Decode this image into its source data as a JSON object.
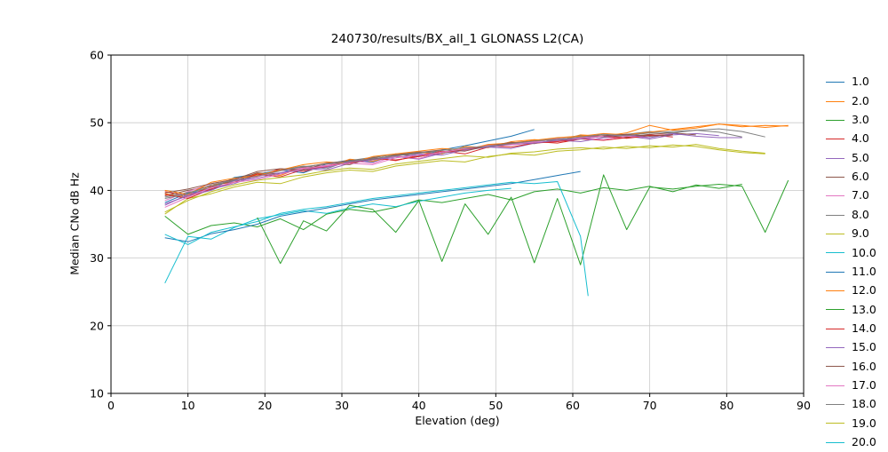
{
  "chart_data": {
    "type": "line",
    "title": "240730/results/BX_all_1 GLONASS L2(CA)",
    "xlabel": "Elevation (deg)",
    "ylabel": "Median CNo dB Hz",
    "xlim": [
      0,
      90
    ],
    "ylim": [
      10,
      60
    ],
    "xticks": [
      0,
      10,
      20,
      30,
      40,
      50,
      60,
      70,
      80,
      90
    ],
    "yticks": [
      10,
      20,
      30,
      40,
      50,
      60
    ],
    "grid": true,
    "grid_color": "#c9c9c9",
    "frame_color": "#000000",
    "legend_position": "right-outside",
    "series": [
      {
        "label": "1.0",
        "color": "#1f77b4",
        "x": [
          7,
          10,
          13,
          16,
          19,
          22,
          25,
          28,
          31,
          34,
          37,
          40,
          43,
          46,
          49,
          52,
          55
        ],
        "y": [
          38.2,
          39.6,
          40.1,
          41.9,
          42.4,
          43.0,
          42.6,
          43.9,
          44.5,
          44.2,
          45.3,
          45.1,
          46.0,
          46.6,
          47.3,
          48.0,
          49.0
        ]
      },
      {
        "label": "2.0",
        "color": "#ff7f0e",
        "x": [
          7,
          10,
          13,
          16,
          19,
          22,
          25,
          28,
          31,
          34,
          37,
          40,
          43,
          46,
          49,
          52,
          55,
          58,
          61,
          64,
          67,
          70,
          73,
          76,
          79,
          82,
          85,
          88
        ],
        "y": [
          39.5,
          39.0,
          40.8,
          41.2,
          42.5,
          42.2,
          43.5,
          43.4,
          44.6,
          44.3,
          45.2,
          45.6,
          45.4,
          46.5,
          46.3,
          47.2,
          47.5,
          47.3,
          48.2,
          48.0,
          48.5,
          49.6,
          48.9,
          49.2,
          49.8,
          49.4,
          49.6,
          49.5
        ]
      },
      {
        "label": "3.0",
        "color": "#2ca02c",
        "x": [
          7,
          10,
          13,
          16,
          19,
          22,
          25,
          28,
          31,
          34,
          37,
          40,
          43,
          46,
          49,
          52,
          55,
          58,
          61,
          64,
          67,
          70,
          73,
          76,
          79,
          82
        ],
        "y": [
          36.2,
          33.5,
          34.8,
          35.2,
          34.6,
          35.8,
          34.2,
          36.5,
          37.2,
          36.8,
          37.5,
          38.6,
          38.2,
          38.8,
          39.4,
          38.6,
          39.8,
          40.2,
          39.6,
          40.4,
          40.0,
          40.6,
          39.8,
          40.8,
          40.3,
          40.9
        ]
      },
      {
        "label": "4.0",
        "color": "#d62728",
        "x": [
          7,
          10,
          13,
          16,
          19,
          22,
          25,
          28,
          31,
          34,
          37,
          40,
          43,
          46,
          49,
          52,
          55,
          58,
          61,
          64,
          67,
          70,
          73
        ],
        "y": [
          39.8,
          39.2,
          40.5,
          41.6,
          42.0,
          43.2,
          42.8,
          43.6,
          44.2,
          44.8,
          44.4,
          45.2,
          45.8,
          45.4,
          46.4,
          46.8,
          47.2,
          47.0,
          47.6,
          47.4,
          47.8,
          48.2,
          47.9
        ]
      },
      {
        "label": "5.0",
        "color": "#9467bd",
        "x": [
          7,
          10,
          13,
          16,
          19,
          22,
          25,
          28,
          31,
          34,
          37,
          40,
          43,
          46,
          49,
          52,
          55,
          58,
          61,
          64,
          67,
          70,
          73,
          76,
          79
        ],
        "y": [
          37.8,
          39.4,
          40.2,
          41.0,
          42.2,
          42.6,
          43.2,
          43.0,
          44.0,
          44.5,
          45.0,
          44.6,
          45.5,
          46.0,
          46.4,
          46.2,
          47.0,
          47.4,
          47.2,
          47.8,
          48.0,
          47.6,
          48.2,
          48.4,
          48.1
        ]
      },
      {
        "label": "6.0",
        "color": "#8c564b",
        "x": [
          7,
          10,
          13,
          16,
          19,
          22,
          25,
          28,
          31,
          34,
          37,
          40,
          43,
          46,
          49,
          52,
          55,
          58,
          61,
          64,
          67,
          70,
          73,
          76
        ],
        "y": [
          39.2,
          40.0,
          40.6,
          41.4,
          42.6,
          42.4,
          43.4,
          44.0,
          43.8,
          44.8,
          45.4,
          45.0,
          45.6,
          46.2,
          46.6,
          47.1,
          46.9,
          47.5,
          47.7,
          48.1,
          47.9,
          48.3,
          48.5,
          48.2
        ]
      },
      {
        "label": "7.0",
        "color": "#e377c2",
        "x": [
          7,
          10,
          13,
          16,
          19,
          22,
          25,
          28,
          31,
          34,
          37,
          40,
          43,
          46,
          49,
          52,
          55,
          58,
          61,
          64,
          67,
          70
        ],
        "y": [
          38.5,
          39.8,
          41.0,
          41.6,
          42.0,
          42.9,
          43.3,
          43.7,
          44.4,
          44.0,
          45.1,
          44.7,
          45.7,
          45.9,
          46.5,
          46.7,
          47.1,
          47.3,
          47.7,
          47.5,
          48.0,
          47.8
        ]
      },
      {
        "label": "8.0",
        "color": "#7f7f7f",
        "x": [
          7,
          10,
          13,
          16,
          19,
          22,
          25,
          28,
          31,
          34,
          37,
          40,
          43,
          46,
          49,
          52,
          55,
          58,
          61,
          64,
          67,
          70,
          73,
          76,
          79,
          82,
          85
        ],
        "y": [
          39.0,
          39.7,
          40.4,
          41.8,
          42.2,
          43.0,
          43.6,
          43.2,
          44.4,
          44.9,
          45.3,
          45.7,
          45.5,
          46.1,
          46.7,
          46.9,
          47.3,
          47.7,
          48.1,
          47.9,
          48.3,
          48.7,
          48.5,
          48.9,
          49.1,
          48.7,
          47.9
        ]
      },
      {
        "label": "9.0",
        "color": "#bcbd22",
        "x": [
          7,
          10,
          13,
          16,
          19,
          22,
          25,
          28,
          31,
          34,
          37,
          40,
          43,
          46,
          49,
          52,
          55,
          58,
          61,
          64,
          67,
          70,
          73,
          76,
          79,
          82,
          85
        ],
        "y": [
          36.5,
          38.8,
          39.5,
          40.5,
          41.2,
          41.0,
          42.0,
          42.6,
          43.0,
          42.8,
          43.6,
          44.0,
          44.4,
          44.2,
          45.0,
          45.4,
          45.2,
          45.8,
          46.0,
          46.4,
          46.2,
          46.6,
          46.4,
          46.8,
          46.2,
          45.8,
          45.5
        ]
      },
      {
        "label": "10.0",
        "color": "#17becf",
        "x": [
          7,
          10,
          13,
          16,
          19,
          22,
          25,
          28,
          31,
          34,
          37,
          40,
          43,
          46,
          49,
          52
        ],
        "y": [
          26.3,
          33.2,
          32.8,
          34.5,
          35.8,
          36.4,
          37.0,
          36.6,
          37.4,
          38.0,
          37.6,
          38.4,
          39.0,
          39.6,
          40.0,
          40.3
        ]
      },
      {
        "label": "11.0",
        "color": "#1f77b4",
        "x": [
          7,
          10,
          13,
          16,
          19,
          22,
          25,
          28,
          31,
          34,
          37,
          40,
          43,
          46,
          49,
          52,
          55,
          58,
          61
        ],
        "y": [
          33.0,
          32.4,
          33.6,
          34.2,
          35.0,
          36.2,
          36.8,
          37.4,
          38.0,
          38.6,
          39.0,
          39.4,
          39.8,
          40.2,
          40.6,
          41.0,
          41.6,
          42.2,
          42.8
        ]
      },
      {
        "label": "12.0",
        "color": "#ff7f0e",
        "x": [
          7,
          10,
          13,
          16,
          19,
          22,
          25,
          28,
          31,
          34,
          37,
          40,
          43,
          46,
          49,
          52,
          55,
          58,
          61,
          64,
          67,
          70,
          73,
          76,
          79,
          82,
          85,
          88
        ],
        "y": [
          40.0,
          39.4,
          41.2,
          41.8,
          42.2,
          43.0,
          43.8,
          44.2,
          44.0,
          45.0,
          45.4,
          45.8,
          46.2,
          46.0,
          46.8,
          47.0,
          47.4,
          47.8,
          48.0,
          48.4,
          48.2,
          48.6,
          49.0,
          49.4,
          49.8,
          49.6,
          49.3,
          49.6
        ]
      },
      {
        "label": "13.0",
        "color": "#2ca02c",
        "x": [
          19,
          22,
          25,
          28,
          31,
          34,
          37,
          40,
          43,
          46,
          49,
          52,
          55,
          58,
          61,
          64,
          67,
          70,
          73,
          76,
          79,
          82,
          85,
          88
        ],
        "y": [
          36.0,
          29.2,
          35.5,
          34.0,
          37.8,
          37.2,
          33.8,
          38.5,
          29.5,
          38.0,
          33.5,
          39.0,
          29.3,
          38.8,
          29.0,
          42.3,
          34.2,
          40.5,
          40.2,
          40.6,
          40.9,
          40.6,
          33.8,
          41.5
        ]
      },
      {
        "label": "14.0",
        "color": "#d62728",
        "x": [
          7,
          10,
          13,
          16,
          19,
          22,
          25,
          28,
          31,
          34,
          37,
          40,
          43,
          46,
          49,
          52,
          55,
          58,
          61,
          64,
          67,
          70,
          73
        ],
        "y": [
          39.4,
          38.8,
          40.2,
          41.2,
          42.4,
          42.0,
          43.1,
          43.5,
          44.1,
          44.7,
          44.5,
          45.0,
          45.6,
          46.0,
          46.6,
          46.4,
          47.0,
          47.2,
          47.6,
          48.0,
          47.7,
          48.1,
          48.3
        ]
      },
      {
        "label": "15.0",
        "color": "#9467bd",
        "x": [
          7,
          10,
          13,
          16,
          19,
          22,
          25,
          28,
          31,
          34,
          37,
          40,
          43,
          46,
          49,
          52,
          55,
          58,
          61,
          64,
          67,
          70,
          73,
          76,
          79,
          82
        ],
        "y": [
          38.0,
          39.2,
          40.0,
          41.4,
          41.8,
          42.6,
          43.0,
          43.4,
          44.2,
          44.6,
          44.8,
          45.4,
          45.2,
          46.0,
          46.4,
          46.8,
          47.0,
          47.4,
          47.6,
          48.0,
          48.2,
          47.8,
          48.4,
          48.0,
          47.8,
          47.8
        ]
      },
      {
        "label": "16.0",
        "color": "#8c564b",
        "x": [
          7,
          10,
          13,
          16,
          19,
          22,
          25,
          28,
          31,
          34,
          37,
          40,
          43,
          46,
          49,
          52,
          55,
          58,
          61,
          64,
          67,
          70,
          73
        ],
        "y": [
          39.6,
          40.2,
          41.0,
          41.6,
          42.8,
          43.2,
          43.0,
          44.0,
          44.4,
          44.6,
          45.2,
          45.6,
          46.0,
          45.8,
          46.6,
          47.0,
          47.3,
          47.5,
          47.9,
          48.1,
          48.3,
          48.0,
          48.2
        ]
      },
      {
        "label": "17.0",
        "color": "#e377c2",
        "x": [
          7,
          10,
          13,
          16,
          19,
          22,
          25,
          28,
          31,
          34,
          37,
          40,
          43,
          46,
          49,
          52,
          55,
          58,
          61,
          64
        ],
        "y": [
          37.5,
          39.0,
          40.4,
          41.2,
          41.6,
          42.4,
          43.2,
          43.6,
          44.0,
          43.8,
          44.8,
          45.2,
          45.6,
          46.2,
          46.6,
          46.8,
          47.2,
          47.6,
          47.8,
          48.0
        ]
      },
      {
        "label": "18.0",
        "color": "#7f7f7f",
        "x": [
          7,
          10,
          13,
          16,
          19,
          22,
          25,
          28,
          31,
          34,
          37,
          40,
          43,
          46,
          49,
          52,
          55,
          58,
          61,
          64,
          67,
          70,
          73,
          76,
          79,
          82
        ],
        "y": [
          38.8,
          39.5,
          40.8,
          41.5,
          42.1,
          42.9,
          43.5,
          43.9,
          44.3,
          44.7,
          45.1,
          45.5,
          45.9,
          46.3,
          46.5,
          46.9,
          47.3,
          47.5,
          47.9,
          48.3,
          48.1,
          48.5,
          48.7,
          48.9,
          48.6,
          47.9
        ]
      },
      {
        "label": "19.0",
        "color": "#bcbd22",
        "x": [
          7,
          10,
          13,
          16,
          19,
          22,
          25,
          28,
          31,
          34,
          37,
          40,
          43,
          46,
          49,
          52,
          55,
          58,
          61,
          64,
          67,
          70,
          73,
          76,
          79,
          82,
          85
        ],
        "y": [
          36.8,
          38.5,
          39.8,
          40.8,
          41.5,
          41.9,
          42.3,
          42.9,
          43.3,
          43.1,
          43.9,
          44.3,
          44.7,
          45.1,
          44.9,
          45.5,
          45.7,
          46.1,
          46.3,
          46.1,
          46.5,
          46.3,
          46.7,
          46.5,
          46.0,
          45.6,
          45.4
        ]
      },
      {
        "label": "20.0",
        "color": "#17becf",
        "x": [
          7,
          10,
          13,
          16,
          19,
          22,
          25,
          28,
          31,
          34,
          37,
          40,
          43,
          46,
          49,
          52,
          55,
          58,
          61,
          62
        ],
        "y": [
          33.5,
          32.0,
          33.8,
          34.6,
          35.4,
          36.6,
          37.2,
          37.6,
          38.2,
          38.8,
          39.2,
          39.6,
          40.0,
          40.4,
          40.8,
          41.2,
          41.0,
          41.3,
          33.2,
          24.4
        ]
      }
    ]
  }
}
